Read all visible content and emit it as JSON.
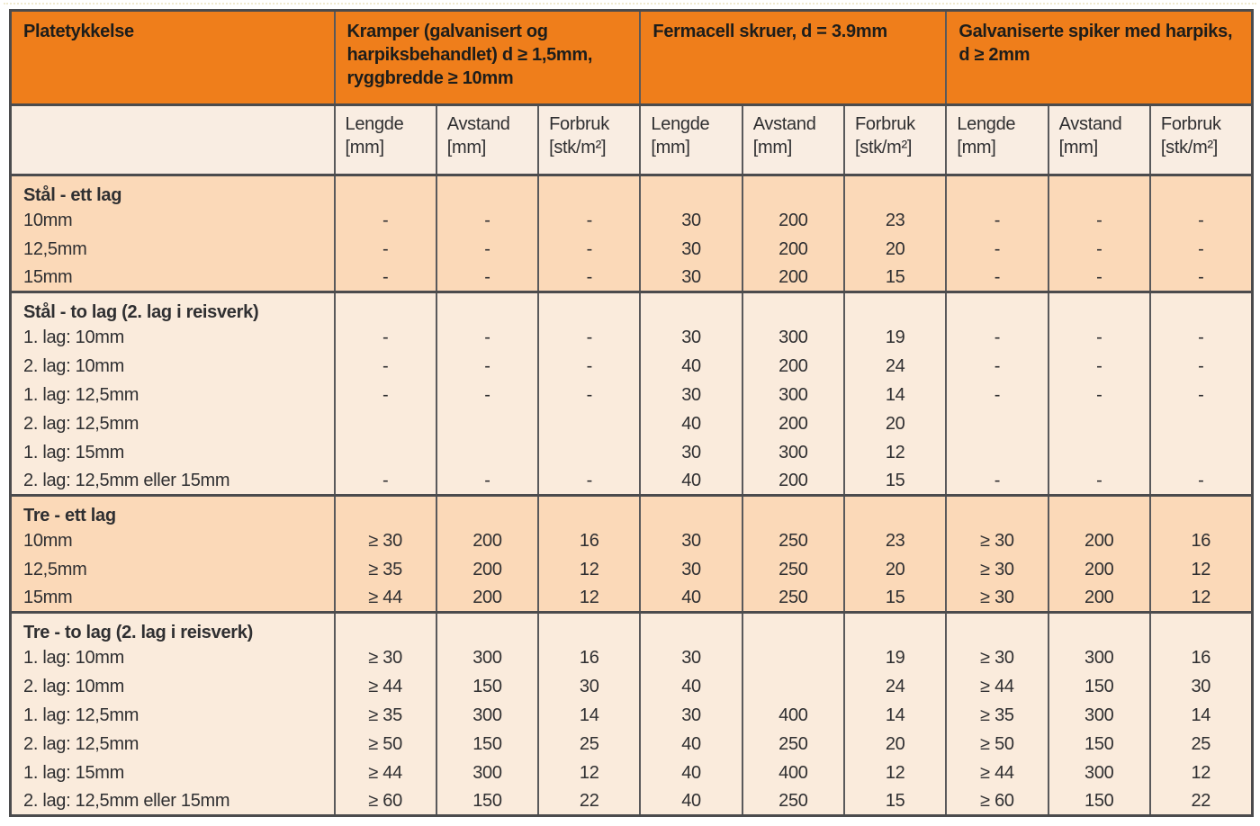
{
  "colors": {
    "orange": "#EF7E1B",
    "section_dark_bg": "#FBD9B8",
    "section_light_bg": "#FAEBDC",
    "subheader_bg": "#F9EDE2",
    "grid_line": "#59595B",
    "outer_border": "#4B4B4D",
    "text": "#2F2F31",
    "text_strong": "#1D1D1B"
  },
  "table": {
    "groups": [
      {
        "title": "Platetykkelse"
      },
      {
        "title": "Kramper (galvanisert og harpiksbehandlet) d ≥ 1,5mm, ryggbredde ≥ 10mm"
      },
      {
        "title": "Fermacell skruer, d = 3.9mm"
      },
      {
        "title": "Galvaniserte spiker med harpiks, d ≥ 2mm"
      }
    ],
    "sub_columns": [
      {
        "label": "Lengde",
        "unit": "[mm]"
      },
      {
        "label": "Avstand",
        "unit": "[mm]"
      },
      {
        "label": "Forbruk",
        "unit": "[stk/m²]"
      },
      {
        "label": "Lengde",
        "unit": "[mm]"
      },
      {
        "label": "Avstand",
        "unit": "[mm]"
      },
      {
        "label": "Forbruk",
        "unit": "[stk/m²]"
      },
      {
        "label": "Lengde",
        "unit": "[mm]"
      },
      {
        "label": "Avstand",
        "unit": "[mm]"
      },
      {
        "label": "Forbruk",
        "unit": "[stk/m²]"
      }
    ],
    "sections": [
      {
        "title": "Stål - ett lag",
        "shade": "dark",
        "rows": [
          {
            "label": "10mm",
            "values": [
              "-",
              "-",
              "-",
              "30",
              "200",
              "23",
              "-",
              "-",
              "-"
            ]
          },
          {
            "label": "12,5mm",
            "values": [
              "-",
              "-",
              "-",
              "30",
              "200",
              "20",
              "-",
              "-",
              "-"
            ]
          },
          {
            "label": "15mm",
            "values": [
              "-",
              "-",
              "-",
              "30",
              "200",
              "15",
              "-",
              "-",
              "-"
            ]
          }
        ]
      },
      {
        "title": "Stål - to lag (2. lag i reisverk)",
        "shade": "light",
        "rows": [
          {
            "label": "1. lag: 10mm",
            "values": [
              "-",
              "-",
              "-",
              "30",
              "300",
              "19",
              "-",
              "-",
              "-"
            ]
          },
          {
            "label": "2. lag: 10mm",
            "values": [
              "-",
              "-",
              "-",
              "40",
              "200",
              "24",
              "-",
              "-",
              "-"
            ]
          },
          {
            "label": "1. lag: 12,5mm",
            "values": [
              "-",
              "-",
              "-",
              "30",
              "300",
              "14",
              "-",
              "-",
              "-"
            ]
          },
          {
            "label": "2. lag: 12,5mm",
            "values": [
              "",
              "",
              "",
              "40",
              "200",
              "20",
              "",
              "",
              ""
            ]
          },
          {
            "label": "1. lag: 15mm",
            "values": [
              "",
              "",
              "",
              "30",
              "300",
              "12",
              "",
              "",
              ""
            ]
          },
          {
            "label": "2. lag: 12,5mm eller 15mm",
            "values": [
              "-",
              "-",
              "-",
              "40",
              "200",
              "15",
              "-",
              "-",
              "-"
            ]
          }
        ]
      },
      {
        "title": "Tre - ett lag",
        "shade": "dark",
        "rows": [
          {
            "label": "10mm",
            "values": [
              "≥ 30",
              "200",
              "16",
              "30",
              "250",
              "23",
              "≥ 30",
              "200",
              "16"
            ]
          },
          {
            "label": "12,5mm",
            "values": [
              "≥ 35",
              "200",
              "12",
              "30",
              "250",
              "20",
              "≥ 30",
              "200",
              "12"
            ]
          },
          {
            "label": "15mm",
            "values": [
              "≥ 44",
              "200",
              "12",
              "40",
              "250",
              "15",
              "≥ 30",
              "200",
              "12"
            ]
          }
        ]
      },
      {
        "title": "Tre - to lag (2. lag i reisverk)",
        "shade": "light",
        "rows": [
          {
            "label": "1. lag: 10mm",
            "values": [
              "≥ 30",
              "300",
              "16",
              "30",
              "",
              "19",
              "≥ 30",
              "300",
              "16"
            ]
          },
          {
            "label": "2. lag: 10mm",
            "values": [
              "≥ 44",
              "150",
              "30",
              "40",
              "",
              "24",
              "≥ 44",
              "150",
              "30"
            ]
          },
          {
            "label": "1. lag: 12,5mm",
            "values": [
              "≥ 35",
              "300",
              "14",
              "30",
              "400",
              "14",
              "≥ 35",
              "300",
              "14"
            ]
          },
          {
            "label": "2. lag: 12,5mm",
            "values": [
              "≥ 50",
              "150",
              "25",
              "40",
              "250",
              "20",
              "≥ 50",
              "150",
              "25"
            ]
          },
          {
            "label": "1. lag: 15mm",
            "values": [
              "≥ 44",
              "300",
              "12",
              "40",
              "400",
              "12",
              "≥ 44",
              "300",
              "12"
            ]
          },
          {
            "label": "2. lag: 12,5mm eller 15mm",
            "values": [
              "≥ 60",
              "150",
              "22",
              "40",
              "250",
              "15",
              "≥ 60",
              "150",
              "22"
            ]
          }
        ]
      }
    ]
  }
}
